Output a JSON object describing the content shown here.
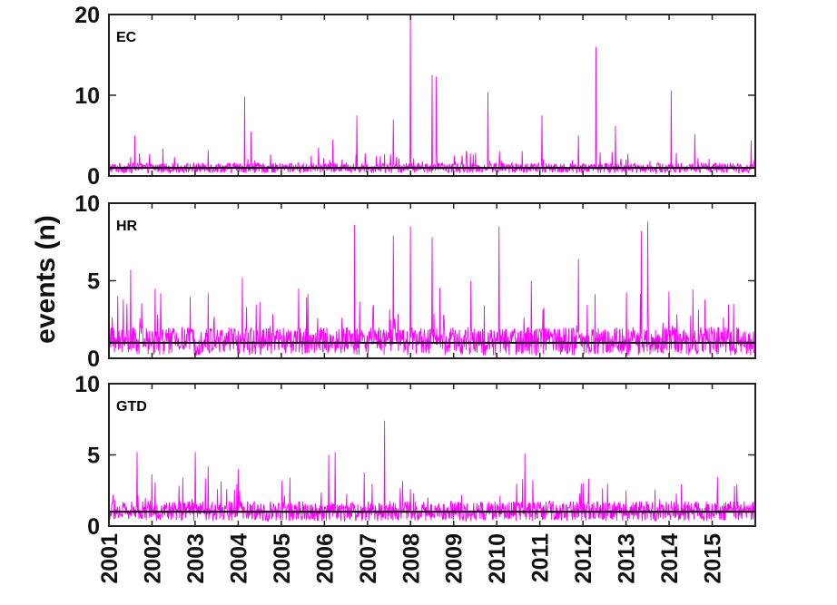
{
  "ylabel": "events (n)",
  "x_ticks": [
    "2001",
    "2002",
    "2003",
    "2004",
    "2005",
    "2006",
    "2007",
    "2008",
    "2009",
    "2010",
    "2011",
    "2012",
    "2013",
    "2014",
    "2015"
  ],
  "series_color": "#ff00ff",
  "reference_color": "#000000",
  "chart_data": [
    {
      "type": "line",
      "panel_label": "EC",
      "xlim": [
        2001.0,
        2016.0
      ],
      "ylim": [
        0,
        20
      ],
      "yticks": [
        "0",
        "10",
        "20"
      ],
      "yticks_values": [
        0,
        10,
        20
      ],
      "reference_line": 1,
      "base_level": 1.0,
      "noise_amplitude": 0.9,
      "peaks": [
        [
          2001.6,
          5.0
        ],
        [
          2003.3,
          3.2
        ],
        [
          2004.15,
          9.8
        ],
        [
          2004.3,
          5.5
        ],
        [
          2006.2,
          4.5
        ],
        [
          2006.75,
          7.5
        ],
        [
          2007.6,
          7.0
        ],
        [
          2008.0,
          20.0
        ],
        [
          2008.5,
          12.5
        ],
        [
          2008.6,
          12.3
        ],
        [
          2009.8,
          10.4
        ],
        [
          2011.05,
          7.5
        ],
        [
          2011.9,
          5.0
        ],
        [
          2012.3,
          16.0
        ],
        [
          2012.75,
          6.2
        ],
        [
          2014.05,
          10.6
        ],
        [
          2014.6,
          5.2
        ],
        [
          2015.9,
          4.4
        ]
      ]
    },
    {
      "type": "line",
      "panel_label": "HR",
      "xlim": [
        2001.0,
        2016.0
      ],
      "ylim": [
        0,
        10
      ],
      "yticks": [
        "0",
        "5",
        "10"
      ],
      "yticks_values": [
        0,
        5,
        10
      ],
      "reference_line": 1,
      "base_level": 1.1,
      "noise_amplitude": 1.3,
      "peaks": [
        [
          2001.5,
          5.7
        ],
        [
          2002.2,
          4.2
        ],
        [
          2003.3,
          4.2
        ],
        [
          2004.1,
          5.2
        ],
        [
          2005.4,
          4.5
        ],
        [
          2006.7,
          8.6
        ],
        [
          2007.6,
          7.9
        ],
        [
          2008.0,
          8.5
        ],
        [
          2008.5,
          7.8
        ],
        [
          2009.4,
          5.0
        ],
        [
          2010.05,
          8.5
        ],
        [
          2010.8,
          5.0
        ],
        [
          2011.9,
          6.4
        ],
        [
          2013.35,
          8.2
        ],
        [
          2013.5,
          8.8
        ],
        [
          2014.0,
          4.3
        ],
        [
          2015.5,
          3.5
        ]
      ]
    },
    {
      "type": "line",
      "panel_label": "GTD",
      "xlim": [
        2001.0,
        2016.0
      ],
      "ylim": [
        0,
        10
      ],
      "yticks": [
        "0",
        "5",
        "10"
      ],
      "yticks_values": [
        0,
        5,
        10
      ],
      "reference_line": 1,
      "base_level": 1.05,
      "noise_amplitude": 1.0,
      "peaks": [
        [
          2001.1,
          2.2
        ],
        [
          2001.65,
          5.2
        ],
        [
          2003.0,
          5.2
        ],
        [
          2003.3,
          4.2
        ],
        [
          2004.0,
          4.0
        ],
        [
          2005.2,
          3.4
        ],
        [
          2006.1,
          5.0
        ],
        [
          2006.25,
          5.2
        ],
        [
          2007.4,
          7.4
        ],
        [
          2008.0,
          2.6
        ],
        [
          2010.65,
          5.1
        ],
        [
          2012.0,
          3.0
        ],
        [
          2013.0,
          2.5
        ],
        [
          2015.5,
          1.7
        ]
      ]
    }
  ]
}
